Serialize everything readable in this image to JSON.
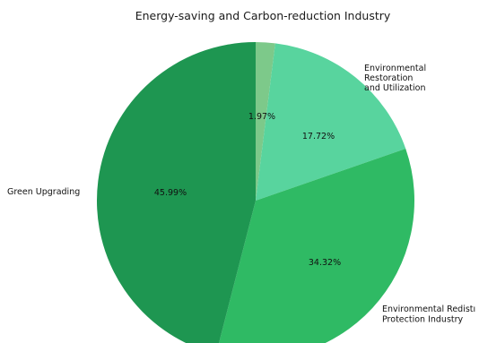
{
  "chart_data": {
    "type": "pie",
    "title": "Energy-saving and Carbon-reduction Industry",
    "slices": [
      {
        "name": "",
        "value": 1.97,
        "label": "1.97%",
        "color": "#7dc98a",
        "label_lines": []
      },
      {
        "name": "Environmental Restoration and Utilization",
        "value": 17.72,
        "label": "17.72%",
        "color": "#58d49e",
        "label_lines": [
          "Environmental",
          "Restoration",
          "and Utilization"
        ]
      },
      {
        "name": "Environmental Redistribution Protection Industry",
        "value": 34.32,
        "label": "34.32%",
        "color": "#2fba64",
        "label_lines": [
          "Environmental Redistı",
          "Protection Industry"
        ]
      },
      {
        "name": "Green Upgrading",
        "value": 45.99,
        "label": "45.99%",
        "color": "#1e9651",
        "label_lines": [
          "Green Upgrading"
        ]
      }
    ]
  }
}
